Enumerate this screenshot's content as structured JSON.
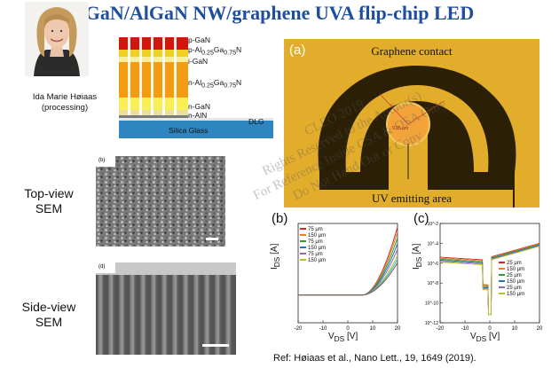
{
  "title": "GaN/AlGaN NW/graphene UVA flip-chip LED",
  "person": {
    "name": "Ida Marie Høiaas",
    "role": "(processing)"
  },
  "structure_layers": [
    {
      "label": "p-GaN"
    },
    {
      "label": "p-Al0.25Ga0.75N",
      "html": "p-Al<sub>0.25</sub>Ga<sub>0.75</sub>N"
    },
    {
      "label": "i-GaN"
    },
    {
      "label": "n-Al0.25Ga0.75N",
      "html": "n-Al<sub>0.25</sub>Ga<sub>0.75</sub>N"
    },
    {
      "label": "n-GaN"
    },
    {
      "label": "n-AlN"
    },
    {
      "label": "DLG"
    },
    {
      "label": "Silica Glass"
    }
  ],
  "sem": {
    "top_label": "Top-view SEM",
    "top_label_lines": [
      "Top-view",
      "SEM"
    ],
    "top_tag": "(b)",
    "side_label": "Side-view SEM",
    "side_label_lines": [
      "Side-view",
      "SEM"
    ],
    "side_tag": "(d)"
  },
  "micrograph": {
    "tag": "(a)",
    "graphene_label": "Graphene contact",
    "uv_label": "UV emitting area",
    "scale_text": "9.25 μm",
    "colors": {
      "gold": "#e3ad2c",
      "background": "#2b1f05",
      "rim": "#f2c95a"
    }
  },
  "plots": [
    {
      "tag": "(b)",
      "type": "line",
      "ylabel": "I_DS [A]",
      "xlabel": "V_DS [V]",
      "xlim": [
        -20,
        20
      ],
      "xticks": [
        -20,
        -10,
        0,
        10,
        20
      ],
      "legend": [
        "75 μm",
        "150 μm",
        "75 μm",
        "150 μm",
        "75 μm",
        "150 μm"
      ],
      "legend_colors": [
        "#d62728",
        "#e67e22",
        "#2ca02c",
        "#1f77b4",
        "#9467bd",
        "#bcbd22"
      ]
    },
    {
      "tag": "(c)",
      "type": "line",
      "yscale": "log",
      "ylabel": "I_DS [A]",
      "xlabel": "V_DS [V]",
      "xlim": [
        -20,
        20
      ],
      "xticks": [
        -20,
        -10,
        0,
        10,
        20
      ],
      "yticks": [
        "10^-2",
        "10^-4",
        "10^-6",
        "10^-8",
        "10^-10",
        "10^-12"
      ],
      "legend": [
        "25 μm",
        "150 μm",
        "25 μm",
        "150 μm",
        "25 μm",
        "150 μm"
      ],
      "legend_colors": [
        "#d62728",
        "#e67e22",
        "#2ca02c",
        "#1f77b4",
        "#9467bd",
        "#bcbd22"
      ]
    }
  ],
  "reference": "Ref: Høiaas et al., Nano Lett., 19, 1649 (2019).",
  "watermark": [
    "CLEO 2019",
    "Rights Reserved to the Author(s)",
    "For Reference Inside CSA & OSA Only",
    "Do Not Hand Out or Copy"
  ]
}
